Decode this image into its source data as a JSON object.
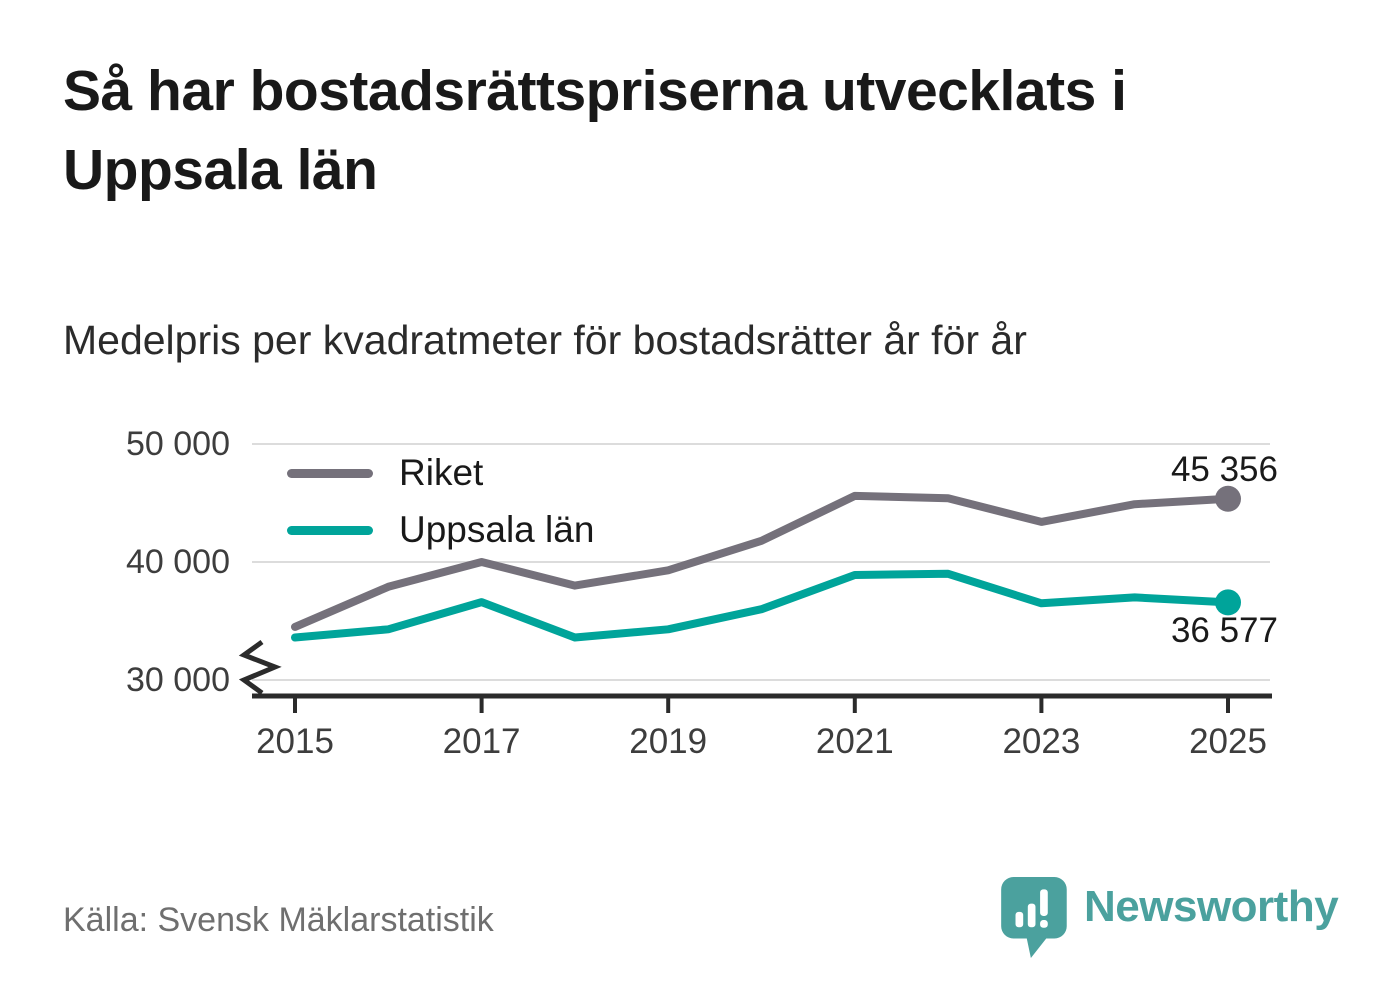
{
  "header": {
    "title": "Så har bostadsrättspriserna utvecklats i Uppsala län",
    "subtitle": "Medelpris per kvadratmeter för bostadsrätter år för år"
  },
  "chart_data": {
    "type": "line",
    "x": [
      2015,
      2016,
      2017,
      2018,
      2019,
      2020,
      2021,
      2022,
      2023,
      2024,
      2025
    ],
    "series": [
      {
        "name": "Riket",
        "color": "#75717b",
        "values": [
          34500,
          37900,
          40000,
          38000,
          39300,
          41800,
          45600,
          45400,
          43400,
          44900,
          45356
        ],
        "end_label": "45 356"
      },
      {
        "name": "Uppsala län",
        "color": "#00a49a",
        "values": [
          33600,
          34300,
          36600,
          33600,
          34300,
          36000,
          38900,
          39000,
          36500,
          37000,
          36577
        ],
        "end_label": "36 577"
      }
    ],
    "yticks": [
      {
        "value": 50000,
        "label": "50 000"
      },
      {
        "value": 40000,
        "label": "40 000"
      },
      {
        "value": 30000,
        "label": "30 000"
      }
    ],
    "xticks": [
      {
        "value": 2015,
        "label": "2015"
      },
      {
        "value": 2017,
        "label": "2017"
      },
      {
        "value": 2019,
        "label": "2019"
      },
      {
        "value": 2021,
        "label": "2021"
      },
      {
        "value": 2023,
        "label": "2023"
      },
      {
        "value": 2025,
        "label": "2025"
      }
    ],
    "ylim": [
      30000,
      50000
    ],
    "axis_break": true,
    "grid": "horizontal",
    "legend_position": "top-left",
    "grid_color": "#dcdcdc",
    "axis_color": "#2b2b2b"
  },
  "footer": {
    "source": "Källa: Svensk Mäklarstatistik",
    "brand": "Newsworthy"
  }
}
